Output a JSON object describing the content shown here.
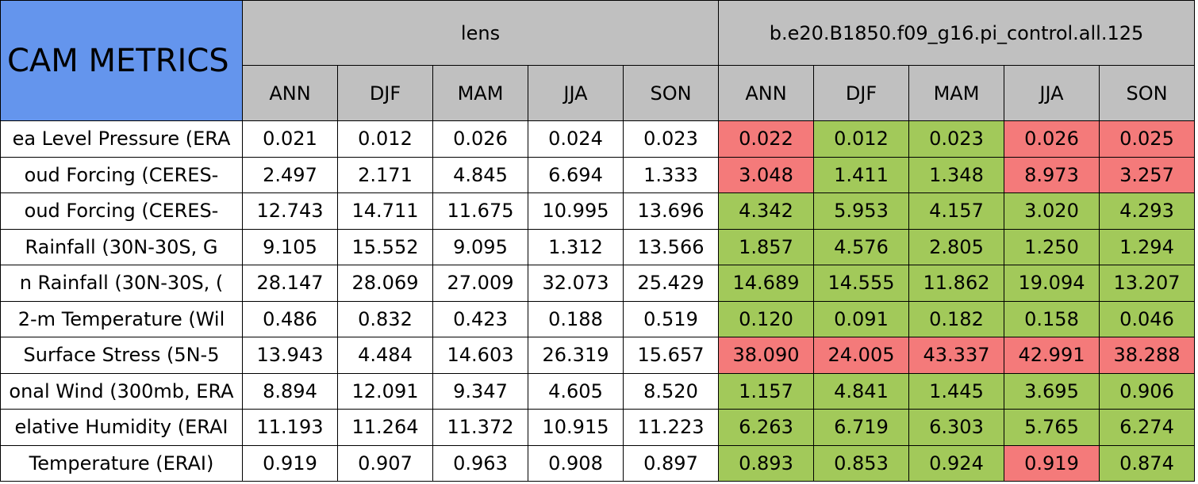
{
  "header": {
    "title": "CAM METRICS",
    "groups": [
      {
        "name": "lens",
        "seasons": [
          "ANN",
          "DJF",
          "MAM",
          "JJA",
          "SON"
        ]
      },
      {
        "name": "b.e20.B1850.f09_g16.pi_control.all.125",
        "seasons": [
          "ANN",
          "DJF",
          "MAM",
          "JJA",
          "SON"
        ]
      }
    ]
  },
  "colors": {
    "title": "#6495ed",
    "header": "#c0c0c0",
    "better": "#a2c95a",
    "worse": "#f47a7a"
  },
  "rows": [
    {
      "label": "ea Level Pressure (ERA",
      "lens": [
        "0.021",
        "0.012",
        "0.026",
        "0.024",
        "0.023"
      ],
      "control": [
        "0.022",
        "0.012",
        "0.023",
        "0.026",
        "0.025"
      ],
      "control_status": [
        "worse",
        "better",
        "better",
        "worse",
        "worse"
      ]
    },
    {
      "label": "oud Forcing (CERES-",
      "lens": [
        "2.497",
        "2.171",
        "4.845",
        "6.694",
        "1.333"
      ],
      "control": [
        "3.048",
        "1.411",
        "1.348",
        "8.973",
        "3.257"
      ],
      "control_status": [
        "worse",
        "better",
        "better",
        "worse",
        "worse"
      ]
    },
    {
      "label": "oud Forcing (CERES-",
      "lens": [
        "12.743",
        "14.711",
        "11.675",
        "10.995",
        "13.696"
      ],
      "control": [
        "4.342",
        "5.953",
        "4.157",
        "3.020",
        "4.293"
      ],
      "control_status": [
        "better",
        "better",
        "better",
        "better",
        "better"
      ]
    },
    {
      "label": "Rainfall (30N-30S, G",
      "lens": [
        "9.105",
        "15.552",
        "9.095",
        "1.312",
        "13.566"
      ],
      "control": [
        "1.857",
        "4.576",
        "2.805",
        "1.250",
        "1.294"
      ],
      "control_status": [
        "better",
        "better",
        "better",
        "better",
        "better"
      ]
    },
    {
      "label": "n Rainfall (30N-30S, (",
      "lens": [
        "28.147",
        "28.069",
        "27.009",
        "32.073",
        "25.429"
      ],
      "control": [
        "14.689",
        "14.555",
        "11.862",
        "19.094",
        "13.207"
      ],
      "control_status": [
        "better",
        "better",
        "better",
        "better",
        "better"
      ]
    },
    {
      "label": "2-m Temperature (Wil",
      "lens": [
        "0.486",
        "0.832",
        "0.423",
        "0.188",
        "0.519"
      ],
      "control": [
        "0.120",
        "0.091",
        "0.182",
        "0.158",
        "0.046"
      ],
      "control_status": [
        "better",
        "better",
        "better",
        "better",
        "better"
      ]
    },
    {
      "label": "Surface Stress (5N-5",
      "lens": [
        "13.943",
        "4.484",
        "14.603",
        "26.319",
        "15.657"
      ],
      "control": [
        "38.090",
        "24.005",
        "43.337",
        "42.991",
        "38.288"
      ],
      "control_status": [
        "worse",
        "worse",
        "worse",
        "worse",
        "worse"
      ]
    },
    {
      "label": "onal Wind (300mb, ERA",
      "lens": [
        "8.894",
        "12.091",
        "9.347",
        "4.605",
        "8.520"
      ],
      "control": [
        "1.157",
        "4.841",
        "1.445",
        "3.695",
        "0.906"
      ],
      "control_status": [
        "better",
        "better",
        "better",
        "better",
        "better"
      ]
    },
    {
      "label": "elative Humidity (ERAI",
      "lens": [
        "11.193",
        "11.264",
        "11.372",
        "10.915",
        "11.223"
      ],
      "control": [
        "6.263",
        "6.719",
        "6.303",
        "5.765",
        "6.274"
      ],
      "control_status": [
        "better",
        "better",
        "better",
        "better",
        "better"
      ]
    },
    {
      "label": "Temperature (ERAI)",
      "lens": [
        "0.919",
        "0.907",
        "0.963",
        "0.908",
        "0.897"
      ],
      "control": [
        "0.893",
        "0.853",
        "0.924",
        "0.919",
        "0.874"
      ],
      "control_status": [
        "better",
        "better",
        "better",
        "worse",
        "better"
      ]
    }
  ]
}
